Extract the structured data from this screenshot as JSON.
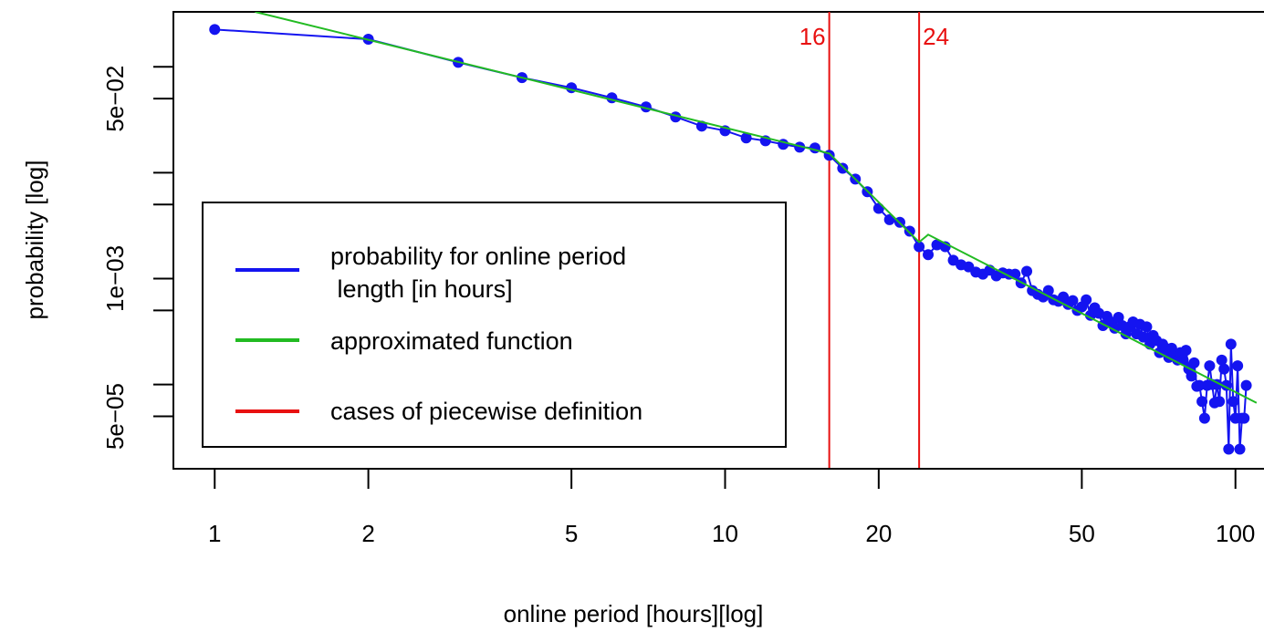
{
  "chart_data": {
    "type": "line",
    "xlabel": "online period [hours][log]",
    "ylabel": "probability [log]",
    "xscale": "log",
    "yscale": "log",
    "xlim": [
      0.83,
      120
    ],
    "ylim": [
      1.6e-05,
      0.33
    ],
    "xticks": [
      1,
      2,
      5,
      10,
      20,
      50,
      100
    ],
    "yticks": [
      0.1,
      {
        "value": 0.05,
        "label": "5e−02"
      },
      0.01,
      0.005,
      {
        "value": 0.001,
        "label": "1e−03"
      },
      0.0005,
      0.0001,
      {
        "value": 5e-05,
        "label": "5e−05"
      }
    ],
    "series": [
      {
        "name": "probability for online period\n length [in hours]",
        "color": "#1414f0",
        "markers": true,
        "x": [
          1,
          2,
          3,
          4,
          5,
          6,
          7,
          8,
          9,
          10,
          11,
          12,
          13,
          14,
          15,
          16,
          17,
          18,
          19,
          20,
          21,
          22,
          23,
          24,
          25,
          26,
          27,
          28,
          29,
          30,
          31,
          32,
          33,
          34,
          35,
          36,
          37,
          38,
          39,
          40,
          41,
          42,
          43,
          44,
          45,
          46,
          47,
          48,
          49,
          50,
          51,
          52,
          53,
          54,
          55,
          56,
          57,
          58,
          59,
          60,
          61,
          62,
          63,
          64,
          65,
          66,
          67,
          68,
          69,
          70,
          71,
          72,
          73,
          74,
          75,
          76,
          77,
          78,
          79,
          80,
          81,
          82,
          83,
          84,
          85,
          86,
          87,
          88,
          89,
          90,
          91,
          92,
          93,
          94,
          95,
          96,
          97,
          98,
          99,
          100,
          101,
          102,
          103,
          104,
          105
        ],
        "values": [
          0.225,
          0.182,
          0.11,
          0.0789,
          0.0634,
          0.0509,
          0.0418,
          0.0336,
          0.0275,
          0.0249,
          0.0213,
          0.02,
          0.0185,
          0.0174,
          0.0171,
          0.0146,
          0.011,
          0.0087,
          0.0066,
          0.0046,
          0.0036,
          0.0034,
          0.0028,
          0.002,
          0.00168,
          0.00208,
          0.002,
          0.00149,
          0.00135,
          0.00129,
          0.00115,
          0.0011,
          0.0012,
          0.00106,
          0.00113,
          0.0011,
          0.0011,
          0.00091,
          0.00117,
          0.00077,
          0.00071,
          0.00067,
          0.00077,
          0.00063,
          0.00061,
          0.00067,
          0.00057,
          0.00062,
          0.0005,
          0.00054,
          0.00063,
          0.00045,
          0.00053,
          0.00047,
          0.00036,
          0.00044,
          0.00039,
          0.00034,
          0.00043,
          0.00036,
          0.0003,
          0.00035,
          0.00039,
          0.0003,
          0.00037,
          0.00028,
          0.00035,
          0.00024,
          0.00029,
          0.00026,
          0.0002,
          0.00024,
          0.00022,
          0.00018,
          0.00022,
          0.00019,
          0.00017,
          0.0002,
          0.00017,
          0.00021,
          0.00014,
          0.00012,
          0.00016,
          9.6e-05,
          9.8e-05,
          6.9e-05,
          4.8e-05,
          9.8e-05,
          0.00015,
          0.0001,
          6.7e-05,
          0.0001,
          6.9e-05,
          0.00017,
          0.00014,
          9.8e-05,
          2.45e-05,
          0.00024,
          6.9e-05,
          4.8e-05,
          0.00015,
          2.45e-05,
          4.8e-05,
          4.8e-05,
          9.8e-05
        ]
      },
      {
        "name": "approximated function",
        "color": "#22bb22",
        "markers": false,
        "x": [
          1.2,
          16,
          24,
          25,
          110
        ],
        "values": [
          0.33,
          0.0152,
          0.00221,
          0.0026,
          6.7e-05
        ]
      }
    ],
    "vlines": {
      "name": "cases of piecewise definition",
      "color": "#e81010",
      "values": [
        16,
        24
      ]
    }
  }
}
